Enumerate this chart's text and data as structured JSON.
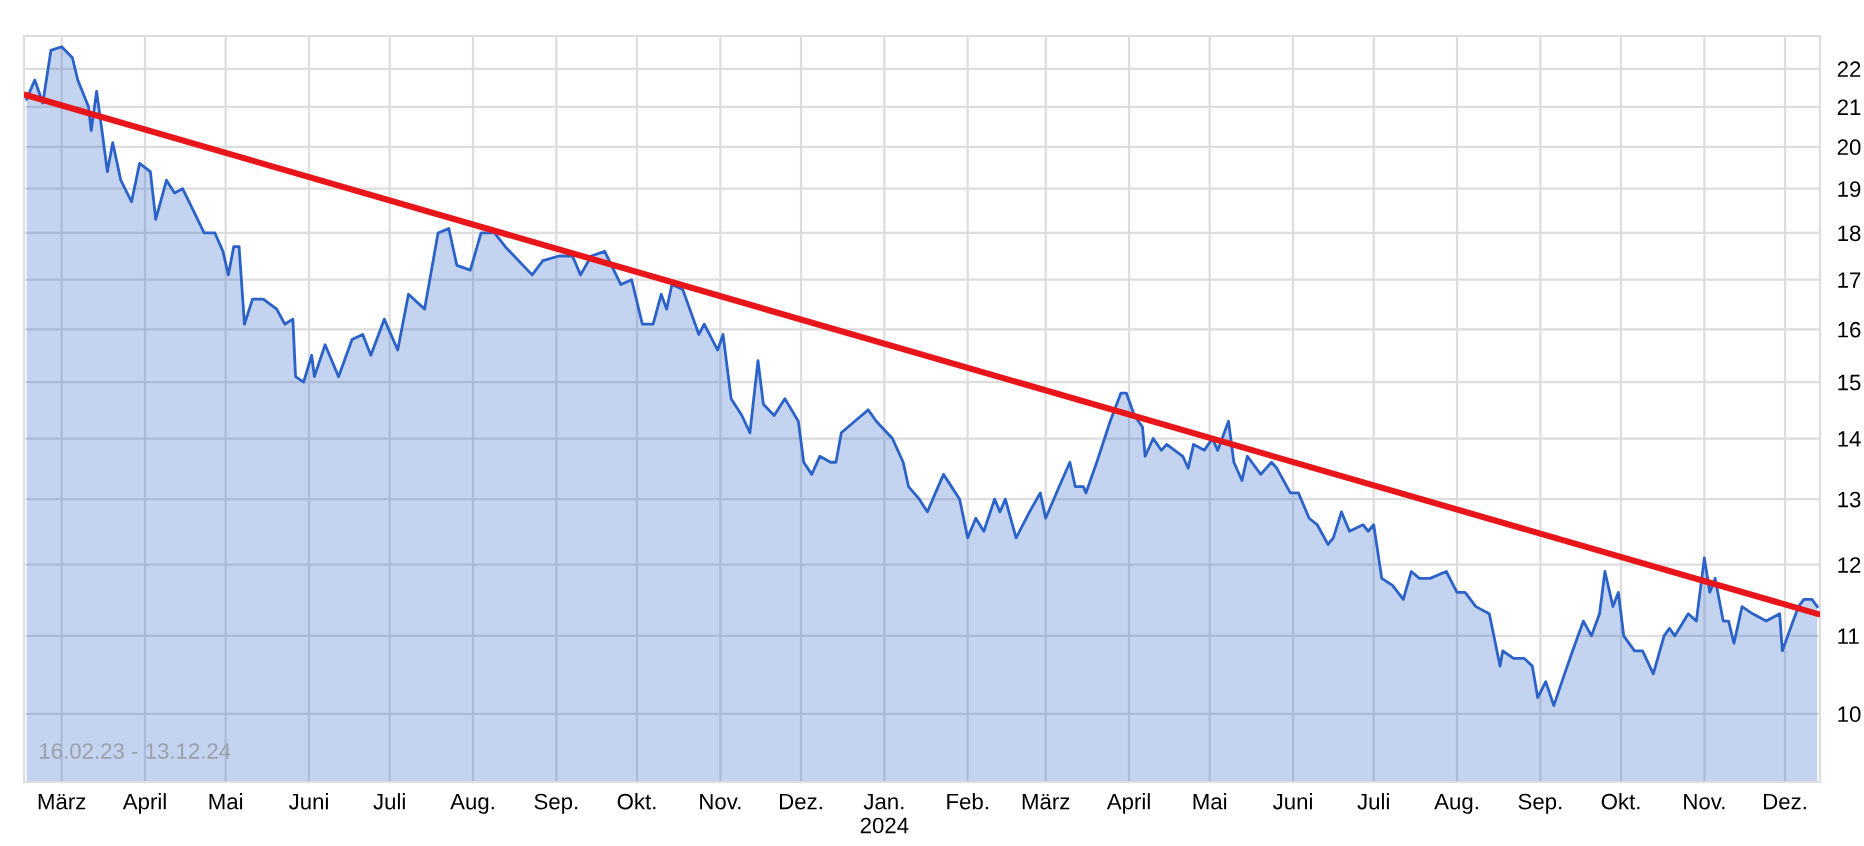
{
  "chart_data": {
    "type": "area",
    "log": "y",
    "grid": true,
    "ylim": [
      9.2,
      22.9
    ],
    "yticks": [
      10,
      11,
      12,
      13,
      14,
      15,
      16,
      17,
      18,
      19,
      20,
      21,
      22
    ],
    "xlim": [
      "2023-02-15",
      "2024-12-14"
    ],
    "xticks": [
      {
        "value": "2023-03-01",
        "label": "März"
      },
      {
        "value": "2023-04-01",
        "label": "April"
      },
      {
        "value": "2023-05-01",
        "label": "Mai"
      },
      {
        "value": "2023-06-01",
        "label": "Juni"
      },
      {
        "value": "2023-07-01",
        "label": "Juli"
      },
      {
        "value": "2023-08-01",
        "label": "Aug."
      },
      {
        "value": "2023-09-01",
        "label": "Sep."
      },
      {
        "value": "2023-10-01",
        "label": "Okt."
      },
      {
        "value": "2023-11-01",
        "label": "Nov."
      },
      {
        "value": "2023-12-01",
        "label": "Dez."
      },
      {
        "value": "2024-01-01",
        "label": "Jan.\n2024"
      },
      {
        "value": "2024-02-01",
        "label": "Feb."
      },
      {
        "value": "2024-03-01",
        "label": "März"
      },
      {
        "value": "2024-04-01",
        "label": "April"
      },
      {
        "value": "2024-05-01",
        "label": "Mai"
      },
      {
        "value": "2024-06-01",
        "label": "Juni"
      },
      {
        "value": "2024-07-01",
        "label": "Juli"
      },
      {
        "value": "2024-08-01",
        "label": "Aug."
      },
      {
        "value": "2024-09-01",
        "label": "Sep."
      },
      {
        "value": "2024-10-01",
        "label": "Okt."
      },
      {
        "value": "2024-11-01",
        "label": "Nov."
      },
      {
        "value": "2024-12-01",
        "label": "Dez."
      }
    ],
    "annotations": [
      "16.02.23 - 13.12.24"
    ],
    "series": [
      {
        "color": "#2a62c9",
        "x": [
          "2023-02-16",
          "2023-02-19",
          "2023-02-22",
          "2023-02-25",
          "2023-03-01",
          "2023-03-05",
          "2023-03-07",
          "2023-03-11",
          "2023-03-12",
          "2023-03-14",
          "2023-03-16",
          "2023-03-18",
          "2023-03-20",
          "2023-03-23",
          "2023-03-27",
          "2023-03-30",
          "2023-04-03",
          "2023-04-05",
          "2023-04-09",
          "2023-04-12",
          "2023-04-15",
          "2023-04-19",
          "2023-04-23",
          "2023-04-27",
          "2023-04-30",
          "2023-05-02",
          "2023-05-04",
          "2023-05-06",
          "2023-05-08",
          "2023-05-11",
          "2023-05-15",
          "2023-05-20",
          "2023-05-23",
          "2023-05-26",
          "2023-05-27",
          "2023-05-30",
          "2023-06-02",
          "2023-06-03",
          "2023-06-07",
          "2023-06-12",
          "2023-06-17",
          "2023-06-21",
          "2023-06-24",
          "2023-06-29",
          "2023-07-04",
          "2023-07-08",
          "2023-07-14",
          "2023-07-19",
          "2023-07-23",
          "2023-07-26",
          "2023-07-31",
          "2023-08-04",
          "2023-08-09",
          "2023-08-13",
          "2023-08-23",
          "2023-08-27",
          "2023-09-02",
          "2023-09-07",
          "2023-09-10",
          "2023-09-14",
          "2023-09-19",
          "2023-09-25",
          "2023-09-29",
          "2023-10-03",
          "2023-10-07",
          "2023-10-10",
          "2023-10-12",
          "2023-10-14",
          "2023-10-18",
          "2023-10-24",
          "2023-10-26",
          "2023-10-31",
          "2023-11-02",
          "2023-11-05",
          "2023-11-09",
          "2023-11-12",
          "2023-11-15",
          "2023-11-17",
          "2023-11-21",
          "2023-11-25",
          "2023-11-30",
          "2023-12-02",
          "2023-12-05",
          "2023-12-08",
          "2023-12-12",
          "2023-12-14",
          "2023-12-16",
          "2023-12-21",
          "2023-12-26",
          "2023-12-29",
          "2024-01-04",
          "2024-01-08",
          "2024-01-10",
          "2024-01-14",
          "2024-01-17",
          "2024-01-20",
          "2024-01-23",
          "2024-01-29",
          "2024-02-01",
          "2024-02-04",
          "2024-02-07",
          "2024-02-11",
          "2024-02-13",
          "2024-02-15",
          "2024-02-19",
          "2024-02-24",
          "2024-02-28",
          "2024-03-01",
          "2024-03-06",
          "2024-03-10",
          "2024-03-12",
          "2024-03-15",
          "2024-03-16",
          "2024-03-20",
          "2024-03-25",
          "2024-03-29",
          "2024-03-31",
          "2024-04-03",
          "2024-04-06",
          "2024-04-07",
          "2024-04-10",
          "2024-04-13",
          "2024-04-15",
          "2024-04-21",
          "2024-04-23",
          "2024-04-25",
          "2024-04-29",
          "2024-05-02",
          "2024-05-04",
          "2024-05-08",
          "2024-05-10",
          "2024-05-13",
          "2024-05-15",
          "2024-05-20",
          "2024-05-24",
          "2024-05-26",
          "2024-05-31",
          "2024-06-03",
          "2024-06-07",
          "2024-06-10",
          "2024-06-14",
          "2024-06-16",
          "2024-06-19",
          "2024-06-22",
          "2024-06-27",
          "2024-06-29",
          "2024-07-01",
          "2024-07-04",
          "2024-07-08",
          "2024-07-12",
          "2024-07-15",
          "2024-07-18",
          "2024-07-22",
          "2024-07-28",
          "2024-08-01",
          "2024-08-04",
          "2024-08-08",
          "2024-08-13",
          "2024-08-17",
          "2024-08-18",
          "2024-08-22",
          "2024-08-26",
          "2024-08-29",
          "2024-08-31",
          "2024-09-03",
          "2024-09-06",
          "2024-09-10",
          "2024-09-13",
          "2024-09-17",
          "2024-09-20",
          "2024-09-23",
          "2024-09-25",
          "2024-09-28",
          "2024-09-30",
          "2024-10-02",
          "2024-10-06",
          "2024-10-09",
          "2024-10-13",
          "2024-10-17",
          "2024-10-19",
          "2024-10-21",
          "2024-10-26",
          "2024-10-29",
          "2024-11-01",
          "2024-11-03",
          "2024-11-05",
          "2024-11-08",
          "2024-11-10",
          "2024-11-12",
          "2024-11-15",
          "2024-11-19",
          "2024-11-24",
          "2024-11-29",
          "2024-11-30",
          "2024-12-04",
          "2024-12-06",
          "2024-12-08",
          "2024-12-11",
          "2024-12-13"
        ],
        "values": [
          21.2,
          21.7,
          21.1,
          22.5,
          22.6,
          22.3,
          21.7,
          21.0,
          20.4,
          21.4,
          20.4,
          19.4,
          20.1,
          19.2,
          18.7,
          19.6,
          19.4,
          18.3,
          19.2,
          18.9,
          19.0,
          18.5,
          18.0,
          18.0,
          17.6,
          17.1,
          17.7,
          17.7,
          16.1,
          16.6,
          16.6,
          16.4,
          16.1,
          16.2,
          15.1,
          15.0,
          15.5,
          15.1,
          15.7,
          15.1,
          15.8,
          15.9,
          15.5,
          16.2,
          15.6,
          16.7,
          16.4,
          18.0,
          18.1,
          17.3,
          17.2,
          18.0,
          18.0,
          17.7,
          17.1,
          17.4,
          17.5,
          17.5,
          17.1,
          17.5,
          17.6,
          16.9,
          17.0,
          16.1,
          16.1,
          16.7,
          16.4,
          16.9,
          16.8,
          15.9,
          16.1,
          15.6,
          15.9,
          14.7,
          14.4,
          14.1,
          15.4,
          14.6,
          14.4,
          14.7,
          14.3,
          13.6,
          13.4,
          13.7,
          13.6,
          13.6,
          14.1,
          14.3,
          14.5,
          14.3,
          14.0,
          13.6,
          13.2,
          13.0,
          12.8,
          13.1,
          13.4,
          13.0,
          12.4,
          12.7,
          12.5,
          13.0,
          12.8,
          13.0,
          12.4,
          12.8,
          13.1,
          12.7,
          13.2,
          13.6,
          13.2,
          13.2,
          13.1,
          13.6,
          14.3,
          14.8,
          14.8,
          14.4,
          14.2,
          13.7,
          14.0,
          13.8,
          13.9,
          13.7,
          13.5,
          13.9,
          13.8,
          14.0,
          13.8,
          14.3,
          13.6,
          13.3,
          13.7,
          13.4,
          13.6,
          13.5,
          13.1,
          13.1,
          12.7,
          12.6,
          12.3,
          12.4,
          12.8,
          12.5,
          12.6,
          12.5,
          12.6,
          11.8,
          11.7,
          11.5,
          11.9,
          11.8,
          11.8,
          11.9,
          11.6,
          11.6,
          11.4,
          11.3,
          10.6,
          10.8,
          10.7,
          10.7,
          10.6,
          10.2,
          10.4,
          10.1,
          10.5,
          10.8,
          11.2,
          11.0,
          11.3,
          11.9,
          11.4,
          11.6,
          11.0,
          10.8,
          10.8,
          10.5,
          11.0,
          11.1,
          11.0,
          11.3,
          11.2,
          12.1,
          11.6,
          11.8,
          11.2,
          11.2,
          10.9,
          11.4,
          11.3,
          11.2,
          11.3,
          10.8,
          11.2,
          11.4,
          11.5,
          11.5,
          11.4
        ]
      },
      {
        "type": "line",
        "color": "#e8161b",
        "x": [
          "2023-02-16",
          "2024-12-13"
        ],
        "values": [
          21.3,
          11.3
        ]
      }
    ]
  }
}
